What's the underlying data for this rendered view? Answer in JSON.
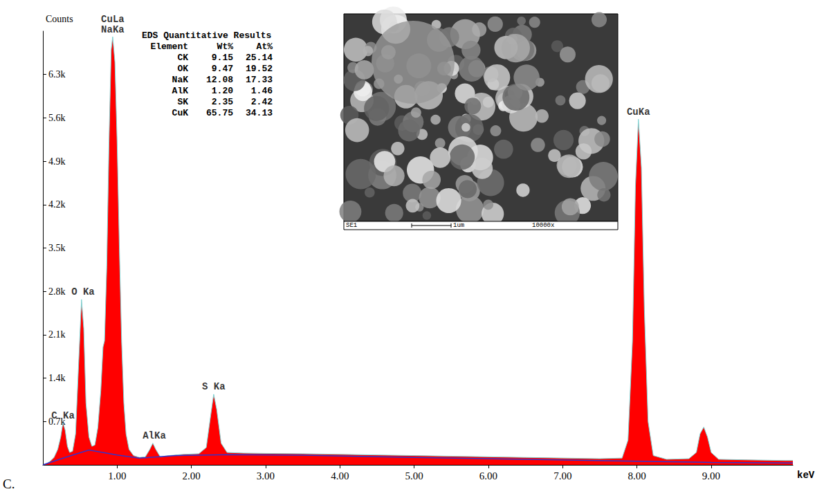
{
  "chart_data": {
    "type": "spectrum",
    "panel_label": "C.",
    "xlabel": "keV",
    "ylabel": "Counts",
    "xlim": [
      0,
      10.1
    ],
    "xticks": [
      {
        "value": 1,
        "label": "1.00"
      },
      {
        "value": 2,
        "label": "2.00"
      },
      {
        "value": 3,
        "label": "3.00"
      },
      {
        "value": 4,
        "label": "4.00"
      },
      {
        "value": 5,
        "label": "5.00"
      },
      {
        "value": 6,
        "label": "6.00"
      },
      {
        "value": 7,
        "label": "7.00"
      },
      {
        "value": 8,
        "label": "8.00"
      },
      {
        "value": 9,
        "label": "9.00"
      }
    ],
    "ylim": [
      0,
      7000
    ],
    "yticks": [
      {
        "value": 700,
        "label": "0.7k"
      },
      {
        "value": 1400,
        "label": "1.4k"
      },
      {
        "value": 2100,
        "label": "2.1k"
      },
      {
        "value": 2800,
        "label": "2.8k"
      },
      {
        "value": 3500,
        "label": "3.5k"
      },
      {
        "value": 4200,
        "label": "4.2k"
      },
      {
        "value": 4900,
        "label": "4.9k"
      },
      {
        "value": 5600,
        "label": "5.6k"
      },
      {
        "value": 6300,
        "label": "6.3k"
      }
    ],
    "grid": false,
    "series": [
      {
        "type": "area",
        "color": "#ff0000",
        "x": [
          0.0,
          0.05,
          0.1,
          0.15,
          0.2,
          0.24,
          0.27,
          0.3,
          0.33,
          0.36,
          0.4,
          0.44,
          0.48,
          0.52,
          0.55,
          0.58,
          0.62,
          0.66,
          0.7,
          0.74,
          0.78,
          0.81,
          0.83,
          0.86,
          0.89,
          0.92,
          0.94,
          0.97,
          1.0,
          1.03,
          1.06,
          1.09,
          1.12,
          1.16,
          1.22,
          1.3,
          1.38,
          1.44,
          1.48,
          1.52,
          1.58,
          1.7,
          1.9,
          2.1,
          2.2,
          2.26,
          2.3,
          2.34,
          2.4,
          2.48,
          2.7,
          3.0,
          3.5,
          4.0,
          4.5,
          5.0,
          5.5,
          6.0,
          6.5,
          7.0,
          7.5,
          7.8,
          7.88,
          7.94,
          7.98,
          8.02,
          8.06,
          8.1,
          8.15,
          8.22,
          8.4,
          8.7,
          8.8,
          8.85,
          8.9,
          8.95,
          9.0,
          9.1,
          9.5,
          10.0,
          10.1
        ],
        "values": [
          0,
          20,
          60,
          120,
          250,
          450,
          680,
          560,
          300,
          200,
          220,
          500,
          1600,
          2670,
          2200,
          1000,
          450,
          300,
          320,
          600,
          1200,
          1900,
          2000,
          3200,
          5200,
          6700,
          6910,
          6500,
          5200,
          3500,
          2000,
          1000,
          500,
          250,
          150,
          120,
          130,
          250,
          350,
          250,
          130,
          150,
          170,
          180,
          280,
          800,
          1140,
          900,
          350,
          200,
          190,
          185,
          180,
          170,
          160,
          150,
          140,
          130,
          120,
          110,
          100,
          110,
          400,
          2000,
          4500,
          5580,
          4800,
          2500,
          700,
          150,
          90,
          100,
          200,
          500,
          610,
          450,
          200,
          90,
          80,
          70,
          70
        ]
      },
      {
        "type": "line",
        "color": "#3333cc",
        "x": [
          0.0,
          0.3,
          0.62,
          1.0,
          1.3,
          1.8,
          2.5,
          3.5,
          5.0,
          6.5,
          8.0,
          9.0,
          10.1
        ],
        "values": [
          0,
          120,
          240,
          160,
          110,
          150,
          165,
          155,
          120,
          90,
          60,
          40,
          30
        ]
      }
    ],
    "annotations": [
      {
        "text": "C Ka",
        "x": 0.27,
        "y": 680
      },
      {
        "text": "O Ka",
        "x": 0.54,
        "y": 2670
      },
      {
        "text": "CuLa",
        "x": 0.94,
        "y": 6910
      },
      {
        "text": "NaKa",
        "x": 0.94,
        "y": 6910
      },
      {
        "text": "AlKa",
        "x": 1.5,
        "y": 350
      },
      {
        "text": "S Ka",
        "x": 2.3,
        "y": 1140
      },
      {
        "text": "CuKa",
        "x": 8.02,
        "y": 5580
      }
    ],
    "table": {
      "title": "EDS Quantitative Results",
      "columns": [
        "Element",
        "Wt%",
        "At%"
      ],
      "rows": [
        [
          "CK",
          "9.15",
          "25.14"
        ],
        [
          "OK",
          "9.47",
          "19.52"
        ],
        [
          "NaK",
          "12.08",
          "17.33"
        ],
        [
          "AlK",
          "1.20",
          "1.46"
        ],
        [
          "SK",
          "2.35",
          "2.42"
        ],
        [
          "CuK",
          "65.75",
          "34.13"
        ]
      ]
    },
    "image_labels": {
      "detector": "SE1",
      "scale_bar": "1um",
      "magnification": "10000x"
    }
  }
}
